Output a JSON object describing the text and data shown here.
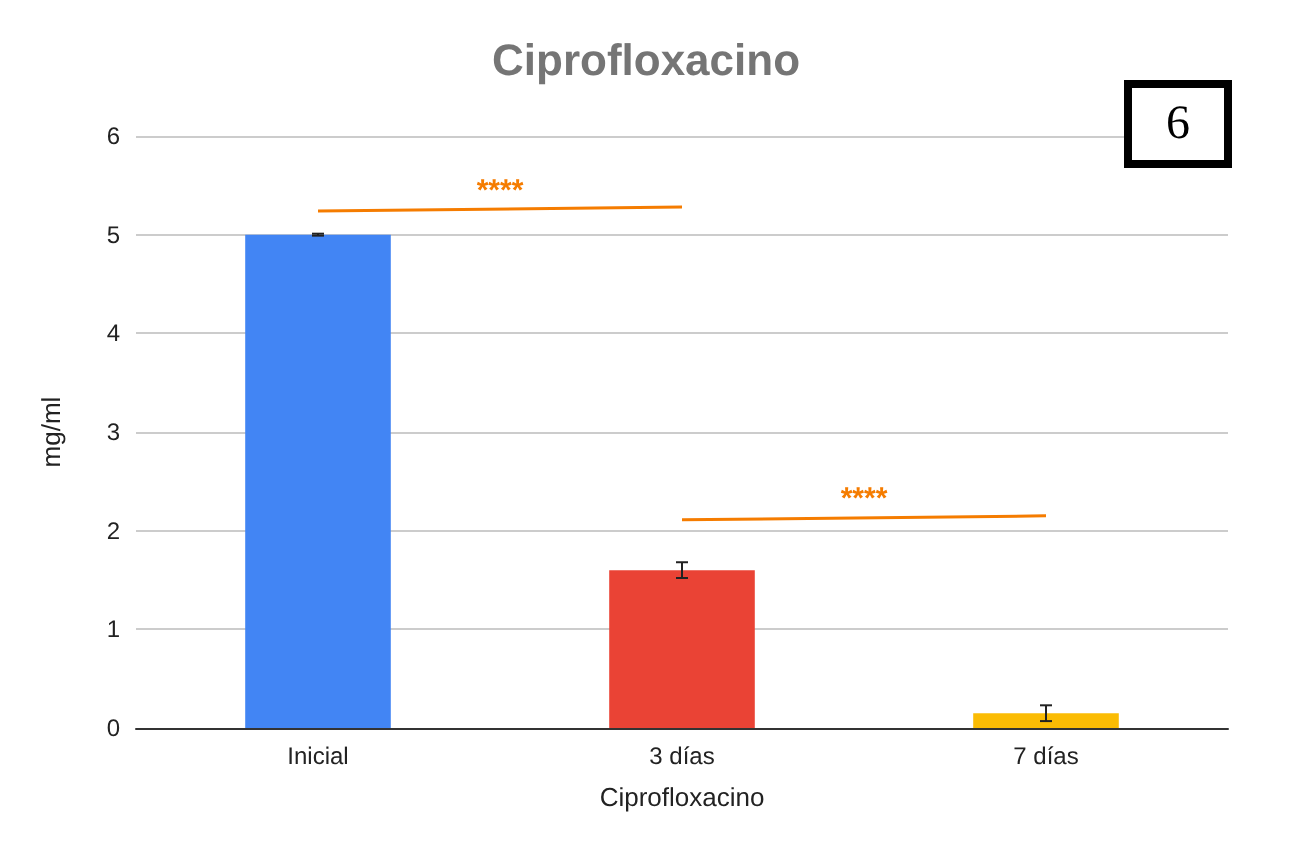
{
  "chart_data": {
    "type": "bar",
    "title": "Ciprofloxacino",
    "xlabel": "Ciprofloxacino",
    "ylabel": "mg/ml",
    "categories": [
      "Inicial",
      "3 días",
      "7 días"
    ],
    "values": [
      5.0,
      1.6,
      0.15
    ],
    "colors": [
      "#4285f4",
      "#ea4335",
      "#fbbc04"
    ],
    "errors": [
      0.01,
      0.08,
      0.08
    ],
    "ylim": [
      0,
      6
    ],
    "yticks": [
      0,
      1,
      2,
      3,
      4,
      5,
      6
    ],
    "grid": "y",
    "annotations": [
      "****",
      "****",
      "6"
    ]
  }
}
